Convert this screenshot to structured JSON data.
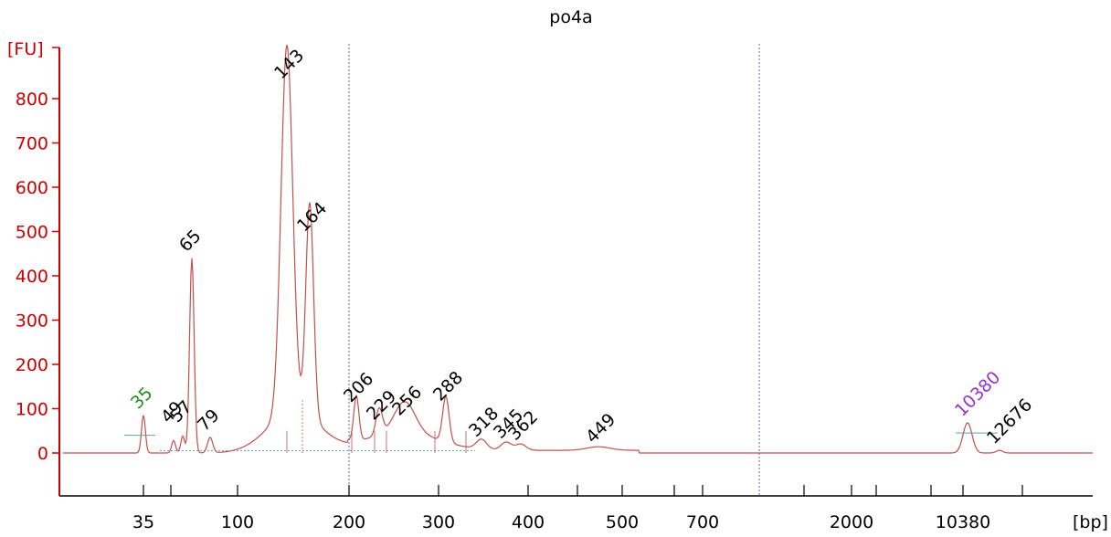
{
  "chart_data": {
    "type": "line",
    "title": "po4a",
    "ylabel": "[FU]",
    "xlabel": "[bp]",
    "ylim": [
      -90,
      880
    ],
    "yticks": [
      0,
      100,
      200,
      300,
      400,
      500,
      600,
      700,
      800
    ],
    "xticks": [
      "35",
      "100",
      "200",
      "300",
      "400",
      "500",
      "700",
      "2000",
      "10380"
    ],
    "grid": false,
    "colors": {
      "axis": "#cc0000",
      "trace": "#c0504d",
      "marker_lower": "#228b22",
      "marker_upper": "#9932cc",
      "baseline": "#5f9ea0",
      "divider": "#6666aa"
    },
    "series": [
      {
        "x_bp": [
          35,
          49,
          57,
          65,
          79,
          143,
          164,
          206,
          229,
          256,
          288,
          318,
          345,
          362,
          449,
          10380,
          12676
        ],
        "y_fu": [
          85,
          28,
          38,
          440,
          35,
          830,
          485,
          100,
          60,
          70,
          103,
          22,
          18,
          14,
          8,
          68,
          6
        ]
      }
    ],
    "peaks": [
      {
        "label": "35",
        "y": 85,
        "kind": "marker_lower"
      },
      {
        "label": "49",
        "y": 28,
        "kind": "peak"
      },
      {
        "label": "57",
        "y": 38,
        "kind": "peak"
      },
      {
        "label": "65",
        "y": 440,
        "kind": "peak"
      },
      {
        "label": "79",
        "y": 35,
        "kind": "peak"
      },
      {
        "label": "143",
        "y": 830,
        "kind": "peak"
      },
      {
        "label": "164",
        "y": 485,
        "kind": "peak"
      },
      {
        "label": "206",
        "y": 100,
        "kind": "peak"
      },
      {
        "label": "229",
        "y": 60,
        "kind": "peak"
      },
      {
        "label": "256",
        "y": 70,
        "kind": "peak"
      },
      {
        "label": "288",
        "y": 103,
        "kind": "peak"
      },
      {
        "label": "318",
        "y": 22,
        "kind": "peak"
      },
      {
        "label": "345",
        "y": 18,
        "kind": "peak"
      },
      {
        "label": "362",
        "y": 14,
        "kind": "peak"
      },
      {
        "label": "449",
        "y": 8,
        "kind": "peak"
      },
      {
        "label": "10380",
        "y": 68,
        "kind": "marker_upper"
      },
      {
        "label": "12676",
        "y": 6,
        "kind": "peak"
      }
    ]
  }
}
